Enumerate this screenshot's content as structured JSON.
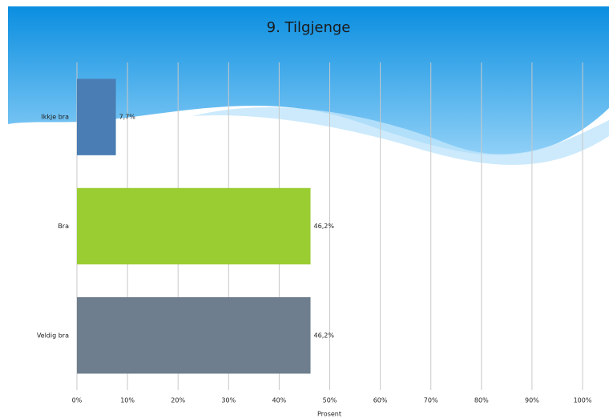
{
  "chart_data": {
    "type": "barh",
    "title": "9. Tilgjenge",
    "x_label": "Prosent",
    "categories": [
      "Ikkje bra",
      "Bra",
      "Veldig bra"
    ],
    "values": [
      7.7,
      46.2,
      46.2
    ],
    "value_labels": [
      "7,7%",
      "46,2%",
      "46,2%"
    ],
    "colors": [
      "#4a7db3",
      "#9acd32",
      "#6e7e8e"
    ],
    "xlim": [
      0,
      100
    ],
    "xticks": [
      {
        "value": 0,
        "label": "0%"
      },
      {
        "value": 10,
        "label": "10%"
      },
      {
        "value": 20,
        "label": "20%"
      },
      {
        "value": 30,
        "label": "30%"
      },
      {
        "value": 40,
        "label": "40%"
      },
      {
        "value": 50,
        "label": "50%"
      },
      {
        "value": 60,
        "label": "60%"
      },
      {
        "value": 70,
        "label": "70%"
      },
      {
        "value": 80,
        "label": "80%"
      },
      {
        "value": 90,
        "label": "90%"
      },
      {
        "value": 100,
        "label": "100%"
      }
    ],
    "grid": true
  }
}
